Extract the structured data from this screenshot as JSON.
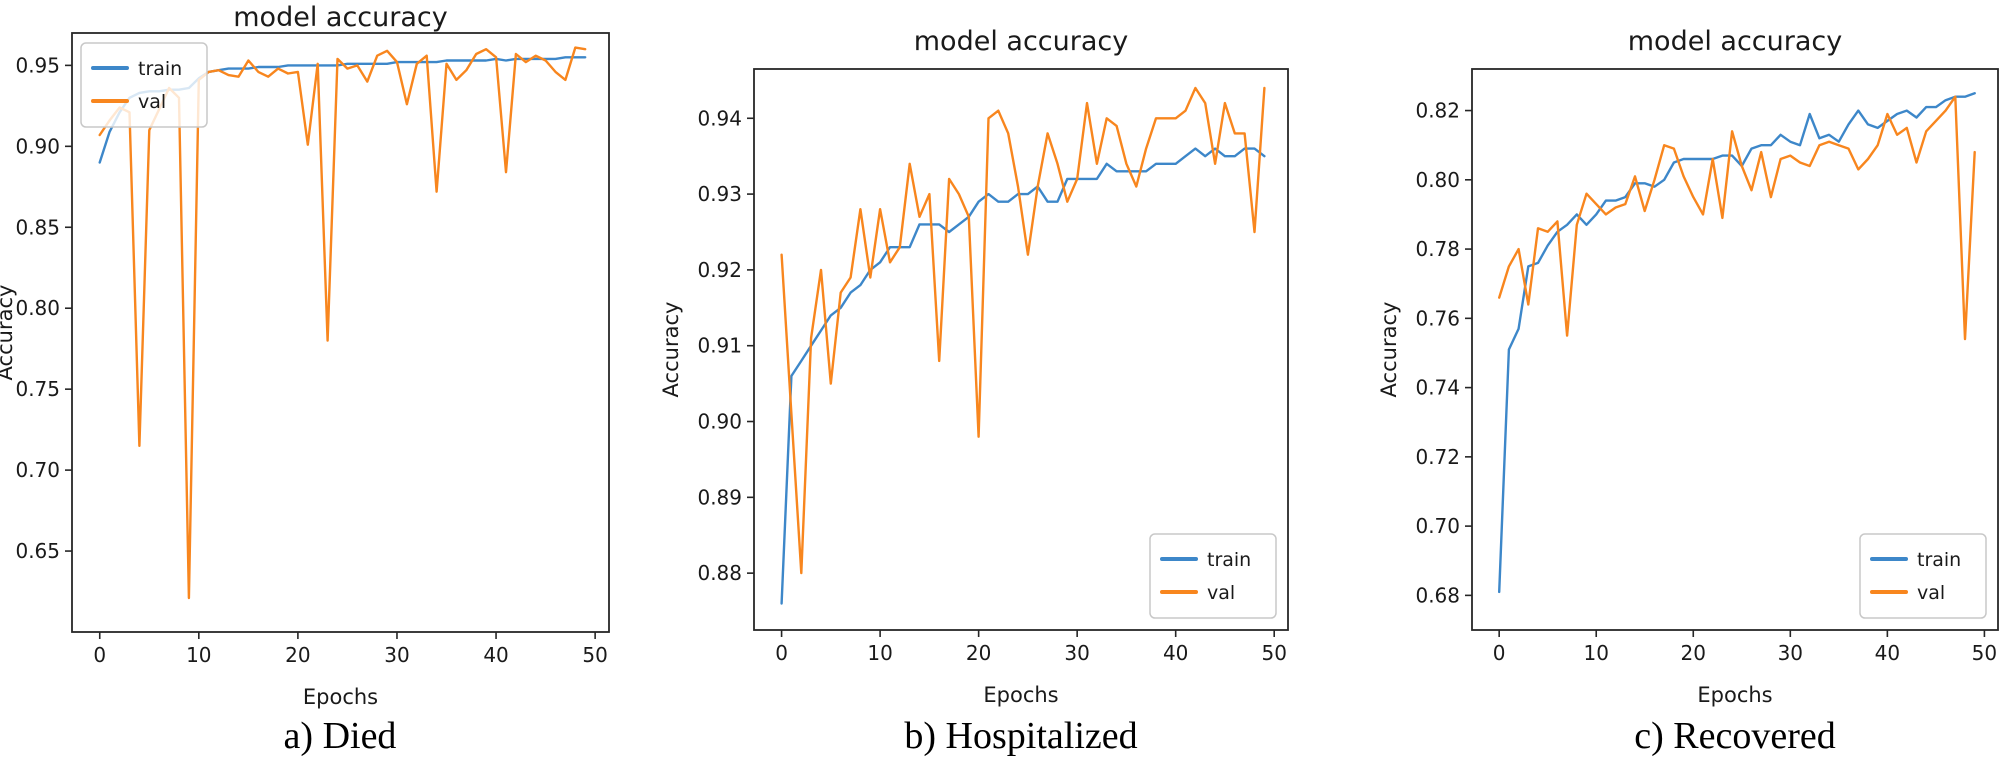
{
  "palette": {
    "train": "#3d87c9",
    "val": "#f8861e",
    "axis": "#262626",
    "text": "#1a1a1a",
    "legend_border": "#c8c8c8",
    "background": "#ffffff"
  },
  "legend": {
    "train_label": "train",
    "val_label": "val"
  },
  "x_values": [
    0,
    1,
    2,
    3,
    4,
    5,
    6,
    7,
    8,
    9,
    10,
    11,
    12,
    13,
    14,
    15,
    16,
    17,
    18,
    19,
    20,
    21,
    22,
    23,
    24,
    25,
    26,
    27,
    28,
    29,
    30,
    31,
    32,
    33,
    34,
    35,
    36,
    37,
    38,
    39,
    40,
    41,
    42,
    43,
    44,
    45,
    46,
    47,
    48,
    49
  ],
  "chart_data": [
    {
      "type": "line",
      "title": "model accuracy",
      "xlabel": "Epochs",
      "ylabel": "Accuracy",
      "caption": "a) Died",
      "legend_position": "top-left",
      "legend_entries": [
        "train",
        "val"
      ],
      "grid": false,
      "xlim": [
        -2.8,
        51.4
      ],
      "ylim": [
        0.6,
        0.97
      ],
      "xtick_values": [
        0,
        10,
        20,
        30,
        40,
        50
      ],
      "xtick_labels": [
        "0",
        "10",
        "20",
        "30",
        "40",
        "50"
      ],
      "ytick_values": [
        0.65,
        0.7,
        0.75,
        0.8,
        0.85,
        0.9,
        0.95
      ],
      "ytick_labels": [
        "0.65",
        "0.70",
        "0.75",
        "0.80",
        "0.85",
        "0.90",
        "0.95"
      ],
      "series": [
        {
          "name": "train",
          "values": [
            0.89,
            0.909,
            0.921,
            0.93,
            0.933,
            0.934,
            0.934,
            0.935,
            0.935,
            0.936,
            0.942,
            0.946,
            0.947,
            0.948,
            0.948,
            0.948,
            0.949,
            0.949,
            0.949,
            0.95,
            0.95,
            0.95,
            0.95,
            0.95,
            0.95,
            0.951,
            0.951,
            0.951,
            0.951,
            0.951,
            0.952,
            0.952,
            0.952,
            0.952,
            0.952,
            0.953,
            0.953,
            0.953,
            0.953,
            0.953,
            0.954,
            0.953,
            0.954,
            0.954,
            0.954,
            0.954,
            0.954,
            0.955,
            0.955,
            0.955
          ]
        },
        {
          "name": "val",
          "values": [
            0.907,
            0.916,
            0.924,
            0.921,
            0.715,
            0.91,
            0.923,
            0.936,
            0.93,
            0.621,
            0.941,
            0.946,
            0.947,
            0.944,
            0.943,
            0.953,
            0.946,
            0.943,
            0.948,
            0.945,
            0.946,
            0.901,
            0.951,
            0.78,
            0.954,
            0.948,
            0.95,
            0.94,
            0.956,
            0.959,
            0.952,
            0.926,
            0.951,
            0.956,
            0.872,
            0.951,
            0.941,
            0.947,
            0.957,
            0.96,
            0.955,
            0.884,
            0.957,
            0.952,
            0.956,
            0.953,
            0.946,
            0.941,
            0.961,
            0.96
          ]
        }
      ]
    },
    {
      "type": "line",
      "title": "model accuracy",
      "xlabel": "Epochs",
      "ylabel": "Accuracy",
      "caption": "b) Hospitalized",
      "legend_position": "bottom-right",
      "legend_entries": [
        "train",
        "val"
      ],
      "grid": false,
      "xlim": [
        -2.8,
        51.4
      ],
      "ylim": [
        0.8725,
        0.9465
      ],
      "xtick_values": [
        0,
        10,
        20,
        30,
        40,
        50
      ],
      "xtick_labels": [
        "0",
        "10",
        "20",
        "30",
        "40",
        "50"
      ],
      "ytick_values": [
        0.88,
        0.89,
        0.9,
        0.91,
        0.92,
        0.93,
        0.94
      ],
      "ytick_labels": [
        "0.88",
        "0.89",
        "0.90",
        "0.91",
        "0.92",
        "0.93",
        "0.94"
      ],
      "series": [
        {
          "name": "train",
          "values": [
            0.876,
            0.906,
            0.908,
            0.91,
            0.912,
            0.914,
            0.915,
            0.917,
            0.918,
            0.92,
            0.921,
            0.923,
            0.923,
            0.923,
            0.926,
            0.926,
            0.926,
            0.925,
            0.926,
            0.927,
            0.929,
            0.93,
            0.929,
            0.929,
            0.93,
            0.93,
            0.931,
            0.929,
            0.929,
            0.932,
            0.932,
            0.932,
            0.932,
            0.934,
            0.933,
            0.933,
            0.933,
            0.933,
            0.934,
            0.934,
            0.934,
            0.935,
            0.936,
            0.935,
            0.936,
            0.935,
            0.935,
            0.936,
            0.936,
            0.935
          ]
        },
        {
          "name": "val",
          "values": [
            0.922,
            0.901,
            0.88,
            0.911,
            0.92,
            0.905,
            0.917,
            0.919,
            0.928,
            0.919,
            0.928,
            0.921,
            0.923,
            0.934,
            0.927,
            0.93,
            0.908,
            0.932,
            0.93,
            0.927,
            0.898,
            0.94,
            0.941,
            0.938,
            0.931,
            0.922,
            0.931,
            0.938,
            0.934,
            0.929,
            0.932,
            0.942,
            0.934,
            0.94,
            0.939,
            0.934,
            0.931,
            0.936,
            0.94,
            0.94,
            0.94,
            0.941,
            0.944,
            0.942,
            0.934,
            0.942,
            0.938,
            0.938,
            0.925,
            0.944
          ]
        }
      ]
    },
    {
      "type": "line",
      "title": "model accuracy",
      "xlabel": "Epochs",
      "ylabel": "Accuracy",
      "caption": "c) Recovered",
      "legend_position": "bottom-right",
      "legend_entries": [
        "train",
        "val"
      ],
      "grid": false,
      "xlim": [
        -2.8,
        51.4
      ],
      "ylim": [
        0.67,
        0.832
      ],
      "xtick_values": [
        0,
        10,
        20,
        30,
        40,
        50
      ],
      "xtick_labels": [
        "0",
        "10",
        "20",
        "30",
        "40",
        "50"
      ],
      "ytick_values": [
        0.68,
        0.7,
        0.72,
        0.74,
        0.76,
        0.78,
        0.8,
        0.82
      ],
      "ytick_labels": [
        "0.68",
        "0.70",
        "0.72",
        "0.74",
        "0.76",
        "0.78",
        "0.80",
        "0.82"
      ],
      "series": [
        {
          "name": "train",
          "values": [
            0.681,
            0.751,
            0.757,
            0.775,
            0.776,
            0.781,
            0.785,
            0.787,
            0.79,
            0.787,
            0.79,
            0.794,
            0.794,
            0.795,
            0.799,
            0.799,
            0.798,
            0.8,
            0.805,
            0.806,
            0.806,
            0.806,
            0.806,
            0.807,
            0.807,
            0.804,
            0.809,
            0.81,
            0.81,
            0.813,
            0.811,
            0.81,
            0.819,
            0.812,
            0.813,
            0.811,
            0.816,
            0.82,
            0.816,
            0.815,
            0.817,
            0.819,
            0.82,
            0.818,
            0.821,
            0.821,
            0.823,
            0.824,
            0.824,
            0.825
          ]
        },
        {
          "name": "val",
          "values": [
            0.766,
            0.775,
            0.78,
            0.764,
            0.786,
            0.785,
            0.788,
            0.755,
            0.787,
            0.796,
            0.793,
            0.79,
            0.792,
            0.793,
            0.801,
            0.791,
            0.8,
            0.81,
            0.809,
            0.801,
            0.795,
            0.79,
            0.806,
            0.789,
            0.814,
            0.804,
            0.797,
            0.808,
            0.795,
            0.806,
            0.807,
            0.805,
            0.804,
            0.81,
            0.811,
            0.81,
            0.809,
            0.803,
            0.806,
            0.81,
            0.819,
            0.813,
            0.815,
            0.805,
            0.814,
            0.817,
            0.82,
            0.824,
            0.754,
            0.808
          ]
        }
      ]
    }
  ]
}
